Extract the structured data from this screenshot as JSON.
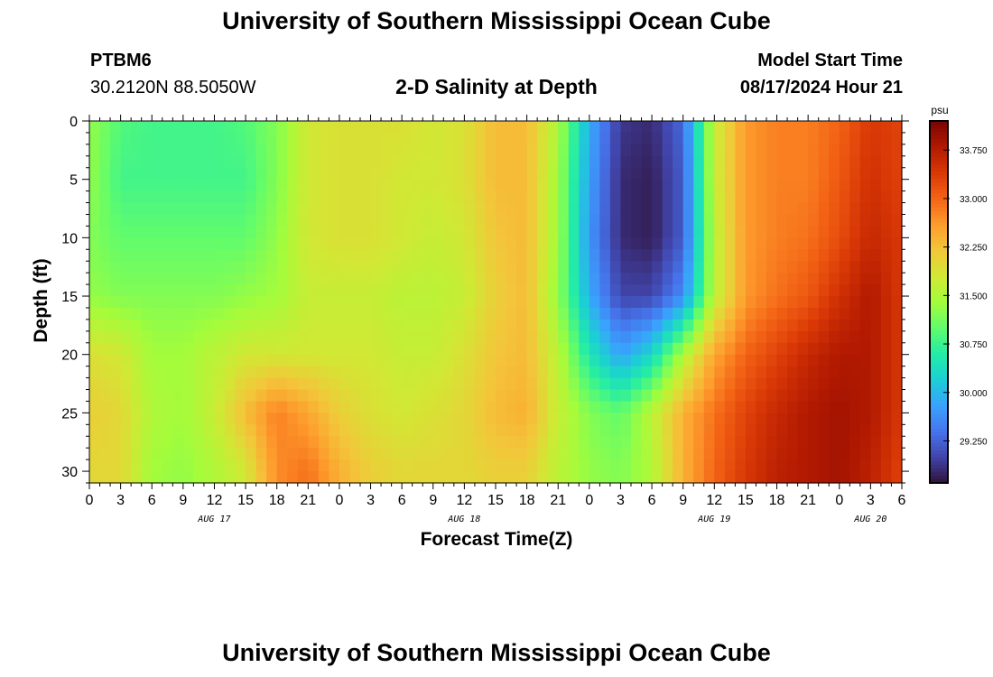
{
  "page": {
    "title": "University of Southern Mississippi Ocean Cube",
    "footer_title": "University of Southern Mississippi Ocean Cube",
    "station_id": "PTBM6",
    "station_coords": "30.2120N  88.5050W",
    "plot_title": "2-D Salinity at Depth",
    "model_start_label": "Model Start Time",
    "model_start_value": "08/17/2024 Hour 21"
  },
  "chart_data": {
    "type": "heatmap",
    "title": "2-D Salinity at Depth",
    "xlabel": "Forecast Time(Z)",
    "ylabel": "Depth (ft)",
    "colorbar_unit": "psu",
    "x_range_hours": [
      0,
      78
    ],
    "y_range_ft": [
      0,
      31
    ],
    "y_inverted": true,
    "x_tick_labels": [
      "0",
      "3",
      "6",
      "9",
      "12",
      "15",
      "18",
      "21",
      "0",
      "3",
      "6",
      "9",
      "12",
      "15",
      "18",
      "21",
      "0",
      "3",
      "6",
      "9",
      "12",
      "15",
      "18",
      "21",
      "0",
      "3",
      "6"
    ],
    "y_tick_labels": [
      "0",
      "5",
      "10",
      "15",
      "20",
      "25",
      "30"
    ],
    "y_ticks": [
      0,
      5,
      10,
      15,
      20,
      25,
      30
    ],
    "date_labels": [
      {
        "text": "AUG 17",
        "hour": 12
      },
      {
        "text": "AUG 18",
        "hour": 36
      },
      {
        "text": "AUG 19",
        "hour": 60
      },
      {
        "text": "AUG 20",
        "hour": 75
      }
    ],
    "colorbar": {
      "min": 28.6,
      "max": 34.2,
      "tick_labels": [
        "33.750",
        "33.000",
        "32.250",
        "31.500",
        "30.750",
        "30.000",
        "29.250"
      ],
      "tick_values": [
        33.75,
        33.0,
        32.25,
        31.5,
        30.75,
        30.0,
        29.25
      ],
      "colormap": [
        "#30123b",
        "#4145ab",
        "#4675ed",
        "#39a2fc",
        "#1bcfd4",
        "#24eca6",
        "#61fc6c",
        "#a4fc3b",
        "#d1e834",
        "#f3c63a",
        "#fe9b2d",
        "#f36315",
        "#d93806",
        "#b11901",
        "#7a0402"
      ]
    },
    "salinity_grid": {
      "x_hours": [
        0,
        3,
        6,
        9,
        12,
        15,
        18,
        21,
        24,
        27,
        30,
        33,
        36,
        39,
        42,
        45,
        48,
        51,
        54,
        57,
        60,
        63,
        66,
        69,
        72,
        75,
        78
      ],
      "depths_ft": [
        0,
        5,
        10,
        15,
        20,
        25,
        30
      ],
      "values": [
        [
          31.3,
          30.9,
          30.8,
          30.8,
          30.8,
          30.9,
          31.2,
          31.8,
          31.9,
          31.9,
          31.9,
          31.8,
          31.9,
          32.3,
          32.3,
          31.5,
          29.9,
          28.9,
          28.8,
          29.3,
          31.7,
          32.6,
          32.8,
          32.8,
          33.0,
          33.4,
          33.3
        ],
        [
          31.3,
          30.8,
          30.8,
          30.8,
          30.8,
          30.8,
          31.2,
          31.8,
          31.9,
          31.9,
          31.8,
          31.8,
          31.9,
          32.3,
          32.3,
          31.4,
          29.8,
          28.8,
          28.7,
          29.2,
          31.7,
          32.6,
          32.8,
          32.8,
          33.1,
          33.5,
          33.3
        ],
        [
          31.2,
          31.0,
          31.0,
          31.0,
          31.0,
          31.0,
          31.3,
          31.8,
          31.9,
          31.9,
          31.8,
          31.7,
          31.8,
          32.2,
          32.3,
          31.4,
          29.7,
          28.8,
          28.7,
          29.2,
          31.6,
          32.6,
          32.8,
          32.9,
          33.2,
          33.6,
          33.4
        ],
        [
          31.3,
          31.2,
          31.2,
          31.2,
          31.2,
          31.3,
          31.4,
          31.7,
          31.7,
          31.7,
          31.6,
          31.6,
          31.7,
          32.1,
          32.3,
          31.3,
          29.9,
          29.0,
          29.0,
          29.6,
          31.6,
          32.6,
          32.9,
          33.1,
          33.5,
          33.8,
          33.4
        ],
        [
          31.9,
          31.8,
          31.4,
          31.4,
          31.6,
          31.8,
          31.8,
          31.8,
          31.8,
          31.8,
          31.7,
          31.7,
          31.9,
          32.2,
          32.3,
          31.6,
          30.5,
          29.8,
          30.3,
          31.5,
          32.5,
          33.0,
          33.3,
          33.6,
          33.8,
          33.8,
          33.4
        ],
        [
          32.1,
          32.0,
          31.5,
          31.4,
          31.7,
          32.3,
          32.8,
          32.5,
          32.1,
          31.9,
          31.8,
          31.9,
          32.0,
          32.3,
          32.4,
          31.7,
          31.2,
          31.0,
          31.6,
          32.4,
          32.9,
          33.3,
          33.6,
          33.8,
          33.9,
          33.8,
          33.4
        ],
        [
          32.0,
          32.0,
          31.4,
          31.3,
          31.5,
          31.8,
          32.7,
          32.9,
          32.4,
          32.1,
          32.0,
          32.0,
          32.0,
          32.1,
          32.1,
          31.6,
          31.3,
          31.2,
          31.5,
          32.4,
          33.0,
          33.4,
          33.7,
          33.8,
          33.9,
          33.7,
          33.3
        ]
      ]
    }
  }
}
